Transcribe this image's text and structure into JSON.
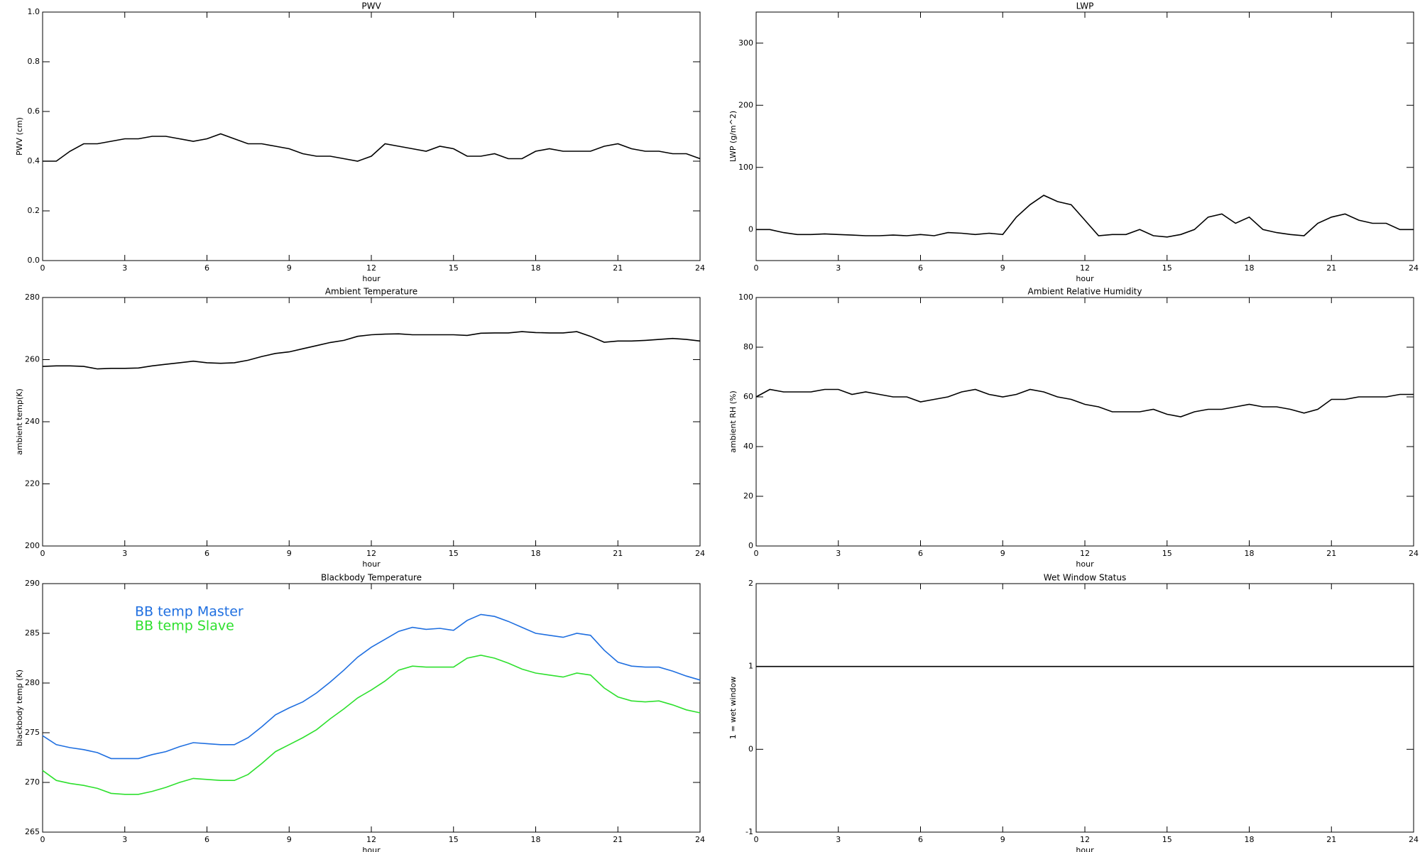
{
  "chart_data": [
    {
      "type": "line",
      "title": "PWV",
      "xlabel": "hour",
      "ylabel": "PWV (cm)",
      "x": [
        0,
        0.5,
        1,
        1.5,
        2,
        2.5,
        3,
        3.5,
        4,
        4.5,
        5,
        5.5,
        6,
        6.5,
        7,
        7.5,
        8,
        8.5,
        9,
        9.5,
        10,
        10.5,
        11,
        11.5,
        12,
        12.5,
        13,
        13.5,
        14,
        14.5,
        15,
        15.5,
        16,
        16.5,
        17,
        17.5,
        18,
        18.5,
        19,
        19.5,
        20,
        20.5,
        21,
        21.5,
        22,
        22.5,
        23,
        23.5,
        24
      ],
      "series": [
        {
          "color": "#000000",
          "values": [
            0.4,
            0.4,
            0.44,
            0.47,
            0.47,
            0.48,
            0.49,
            0.49,
            0.5,
            0.5,
            0.49,
            0.48,
            0.49,
            0.51,
            0.49,
            0.47,
            0.47,
            0.46,
            0.45,
            0.43,
            0.42,
            0.42,
            0.41,
            0.4,
            0.42,
            0.47,
            0.46,
            0.45,
            0.44,
            0.46,
            0.45,
            0.42,
            0.42,
            0.43,
            0.41,
            0.41,
            0.44,
            0.45,
            0.44,
            0.44,
            0.44,
            0.46,
            0.47,
            0.45,
            0.44,
            0.44,
            0.43,
            0.43,
            0.41
          ]
        }
      ],
      "xlim": [
        0,
        24
      ],
      "xticks": [
        0,
        3,
        6,
        9,
        12,
        15,
        18,
        21,
        24
      ],
      "ylim": [
        0,
        1
      ],
      "yticks": [
        {
          "value": 0,
          "label": "0.0"
        },
        {
          "value": 0.2,
          "label": "0.2"
        },
        {
          "value": 0.4,
          "label": "0.4"
        },
        {
          "value": 0.6,
          "label": "0.6"
        },
        {
          "value": 0.8,
          "label": "0.8"
        },
        {
          "value": 1,
          "label": "1.0"
        }
      ]
    },
    {
      "type": "line",
      "title": "LWP",
      "xlabel": "hour",
      "ylabel": "LWP (g/m^2)",
      "x": [
        0,
        0.5,
        1,
        1.5,
        2,
        2.5,
        3,
        3.5,
        4,
        4.5,
        5,
        5.5,
        6,
        6.5,
        7,
        7.5,
        8,
        8.5,
        9,
        9.5,
        10,
        10.5,
        11,
        11.5,
        12,
        12.5,
        13,
        13.5,
        14,
        14.5,
        15,
        15.5,
        16,
        16.5,
        17,
        17.5,
        18,
        18.5,
        19,
        19.5,
        20,
        20.5,
        21,
        21.5,
        22,
        22.5,
        23,
        23.5,
        24
      ],
      "series": [
        {
          "color": "#000000",
          "values": [
            0,
            0,
            -5,
            -8,
            -8,
            -7,
            -8,
            -9,
            -10,
            -10,
            -9,
            -10,
            -8,
            -10,
            -5,
            -6,
            -8,
            -6,
            -8,
            20,
            40,
            55,
            45,
            40,
            15,
            -10,
            -8,
            -8,
            0,
            -10,
            -12,
            -8,
            0,
            20,
            25,
            10,
            20,
            0,
            -5,
            -8,
            -10,
            10,
            20,
            25,
            15,
            10,
            10,
            0,
            0
          ]
        }
      ],
      "xlim": [
        0,
        24
      ],
      "xticks": [
        0,
        3,
        6,
        9,
        12,
        15,
        18,
        21,
        24
      ],
      "ylim": [
        -50,
        350
      ],
      "yticks": [
        0,
        100,
        200,
        300
      ]
    },
    {
      "type": "line",
      "title": "Ambient Temperature",
      "xlabel": "hour",
      "ylabel": "ambient temp(K)",
      "x": [
        0,
        0.5,
        1,
        1.5,
        2,
        2.5,
        3,
        3.5,
        4,
        4.5,
        5,
        5.5,
        6,
        6.5,
        7,
        7.5,
        8,
        8.5,
        9,
        9.5,
        10,
        10.5,
        11,
        11.5,
        12,
        12.5,
        13,
        13.5,
        14,
        14.5,
        15,
        15.5,
        16,
        16.5,
        17,
        17.5,
        18,
        18.5,
        19,
        19.5,
        20,
        20.5,
        21,
        21.5,
        22,
        22.5,
        23,
        23.5,
        24
      ],
      "series": [
        {
          "color": "#000000",
          "values": [
            257.8,
            258,
            258,
            257.8,
            257,
            257.2,
            257.2,
            257.3,
            258,
            258.5,
            259,
            259.5,
            259,
            258.8,
            259,
            259.8,
            261,
            262,
            262.5,
            263.5,
            264.5,
            265.5,
            266.2,
            267.5,
            268,
            268.2,
            268.3,
            268,
            268,
            268,
            268,
            267.8,
            268.5,
            268.6,
            268.6,
            269,
            268.7,
            268.6,
            268.6,
            269,
            267.5,
            265.6,
            266,
            266,
            266.2,
            266.5,
            266.8,
            266.5,
            266
          ]
        }
      ],
      "xlim": [
        0,
        24
      ],
      "xticks": [
        0,
        3,
        6,
        9,
        12,
        15,
        18,
        21,
        24
      ],
      "ylim": [
        200,
        280
      ],
      "yticks": [
        200,
        220,
        240,
        260,
        280
      ]
    },
    {
      "type": "line",
      "title": "Ambient Relative Humidity",
      "xlabel": "hour",
      "ylabel": "ambient RH (%)",
      "x": [
        0,
        0.5,
        1,
        1.5,
        2,
        2.5,
        3,
        3.5,
        4,
        4.5,
        5,
        5.5,
        6,
        6.5,
        7,
        7.5,
        8,
        8.5,
        9,
        9.5,
        10,
        10.5,
        11,
        11.5,
        12,
        12.5,
        13,
        13.5,
        14,
        14.5,
        15,
        15.5,
        16,
        16.5,
        17,
        17.5,
        18,
        18.5,
        19,
        19.5,
        20,
        20.5,
        21,
        21.5,
        22,
        22.5,
        23,
        23.5,
        24
      ],
      "series": [
        {
          "color": "#000000",
          "values": [
            60,
            63,
            62,
            62,
            62,
            63,
            63,
            61,
            62,
            61,
            60,
            60,
            58,
            59,
            60,
            62,
            63,
            61,
            60,
            61,
            63,
            62,
            60,
            59,
            57,
            56,
            54,
            54,
            54,
            55,
            53,
            52,
            54,
            55,
            55,
            56,
            57,
            56,
            56,
            55,
            53.5,
            55,
            59,
            59,
            60,
            60,
            60,
            61,
            61
          ]
        }
      ],
      "xlim": [
        0,
        24
      ],
      "xticks": [
        0,
        3,
        6,
        9,
        12,
        15,
        18,
        21,
        24
      ],
      "ylim": [
        0,
        100
      ],
      "yticks": [
        0,
        20,
        40,
        60,
        80,
        100
      ]
    },
    {
      "type": "line",
      "title": "Blackbody Temperature",
      "xlabel": "hour",
      "ylabel": "blackbody temp (K)",
      "legend": "upper left",
      "x": [
        0,
        0.5,
        1,
        1.5,
        2,
        2.5,
        3,
        3.5,
        4,
        4.5,
        5,
        5.5,
        6,
        6.5,
        7,
        7.5,
        8,
        8.5,
        9,
        9.5,
        10,
        10.5,
        11,
        11.5,
        12,
        12.5,
        13,
        13.5,
        14,
        14.5,
        15,
        15.5,
        16,
        16.5,
        17,
        17.5,
        18,
        18.5,
        19,
        19.5,
        20,
        20.5,
        21,
        21.5,
        22,
        22.5,
        23,
        23.5,
        24
      ],
      "series": [
        {
          "name": "BB temp Master",
          "color": "#1f6fe0",
          "values": [
            274.7,
            273.8,
            273.5,
            273.3,
            273,
            272.4,
            272.4,
            272.4,
            272.8,
            273.1,
            273.6,
            274,
            273.9,
            273.8,
            273.8,
            274.5,
            275.6,
            276.8,
            277.5,
            278.1,
            279,
            280.1,
            281.3,
            282.6,
            283.6,
            284.4,
            285.2,
            285.6,
            285.4,
            285.5,
            285.3,
            286.3,
            286.9,
            286.7,
            286.2,
            285.6,
            285,
            284.8,
            284.6,
            285,
            284.8,
            283.3,
            282.1,
            281.7,
            281.6,
            281.6,
            281.2,
            280.7,
            280.3
          ]
        },
        {
          "name": "BB temp Slave",
          "color": "#2ee02e",
          "values": [
            271.2,
            270.2,
            269.9,
            269.7,
            269.4,
            268.9,
            268.8,
            268.8,
            269.1,
            269.5,
            270,
            270.4,
            270.3,
            270.2,
            270.2,
            270.8,
            271.9,
            273.1,
            273.8,
            274.5,
            275.3,
            276.4,
            277.4,
            278.5,
            279.3,
            280.2,
            281.3,
            281.7,
            281.6,
            281.6,
            281.6,
            282.5,
            282.8,
            282.5,
            282,
            281.4,
            281,
            280.8,
            280.6,
            281,
            280.8,
            279.5,
            278.6,
            278.2,
            278.1,
            278.2,
            277.8,
            277.3,
            277
          ]
        }
      ],
      "xlim": [
        0,
        24
      ],
      "xticks": [
        0,
        3,
        6,
        9,
        12,
        15,
        18,
        21,
        24
      ],
      "ylim": [
        265,
        290
      ],
      "yticks": [
        265,
        270,
        275,
        280,
        285,
        290
      ]
    },
    {
      "type": "line",
      "title": "Wet Window Status",
      "xlabel": "hour",
      "ylabel": "1 = wet window",
      "x": [
        0,
        24
      ],
      "series": [
        {
          "color": "#000000",
          "values": [
            1,
            1
          ]
        }
      ],
      "xlim": [
        0,
        24
      ],
      "xticks": [
        0,
        3,
        6,
        9,
        12,
        15,
        18,
        21,
        24
      ],
      "ylim": [
        -1,
        2
      ],
      "yticks": [
        -1,
        0,
        1,
        2
      ]
    }
  ]
}
